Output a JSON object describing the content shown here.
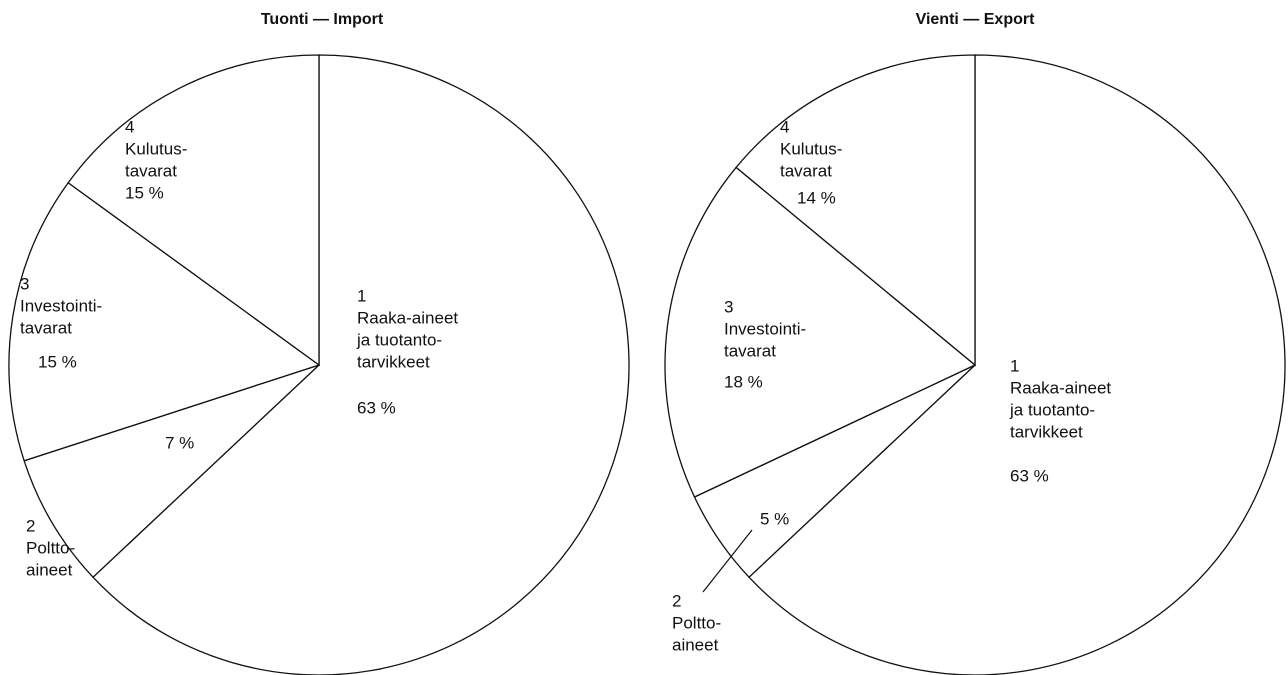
{
  "chart_data": [
    {
      "type": "pie",
      "title": "Tuonti — Import",
      "categories": [
        [
          "1",
          "Raaka-aineet",
          "ja tuotanto-",
          "tarvikkeet"
        ],
        [
          "2",
          "Poltto-",
          "aineet"
        ],
        [
          "3",
          "Investointi-",
          "tavarat"
        ],
        [
          "4",
          "Kulutus-",
          "tavarat"
        ]
      ],
      "values": [
        63,
        7,
        15,
        15
      ],
      "value_labels": [
        "63 %",
        "7 %",
        "15 %",
        "15 %"
      ],
      "color": "#ffffff"
    },
    {
      "type": "pie",
      "title": "Vienti — Export",
      "categories": [
        [
          "1",
          "Raaka-aineet",
          "ja tuotanto-",
          "tarvikkeet"
        ],
        [
          "2",
          "Poltto-",
          "aineet"
        ],
        [
          "3",
          "Investointi-",
          "tavarat"
        ],
        [
          "4",
          "Kulutus-",
          "tavarat"
        ]
      ],
      "values": [
        63,
        5,
        18,
        14
      ],
      "value_labels": [
        "63 %",
        "5 %",
        "18 %",
        "14 %"
      ],
      "color": "#ffffff"
    }
  ]
}
